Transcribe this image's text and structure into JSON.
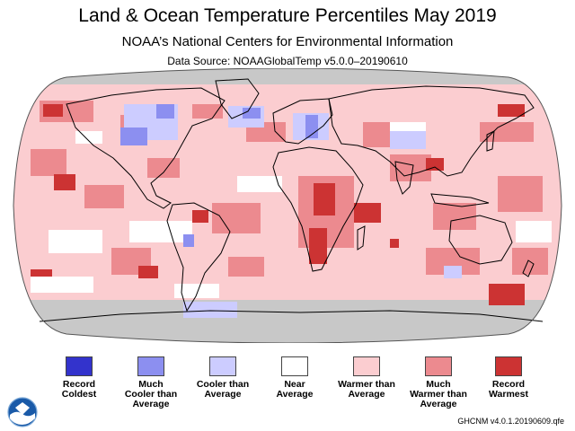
{
  "header": {
    "title": "Land & Ocean Temperature Percentiles May 2019",
    "subtitle": "NOAA’s National Centers for Environmental Information",
    "source": "Data Source: NOAAGlobalTemp v5.0.0–20190610"
  },
  "legend": [
    {
      "label": "Record\nColdest",
      "color": "#3333cc"
    },
    {
      "label": "Much\nCooler than\nAverage",
      "color": "#8c8ff0"
    },
    {
      "label": "Cooler than\nAverage",
      "color": "#ccccff"
    },
    {
      "label": "Near\nAverage",
      "color": "#ffffff"
    },
    {
      "label": "Warmer than\nAverage",
      "color": "#fbcdd0"
    },
    {
      "label": "Much\nWarmer than\nAverage",
      "color": "#ec8a8f"
    },
    {
      "label": "Record\nWarmest",
      "color": "#cc3333"
    }
  ],
  "map_colors": {
    "ocean_base": "#fbcdd0",
    "no_data": "#c8c8c8",
    "coastline": "#000000"
  },
  "footer": "GHCNM v4.0.1.20190609.qfe"
}
